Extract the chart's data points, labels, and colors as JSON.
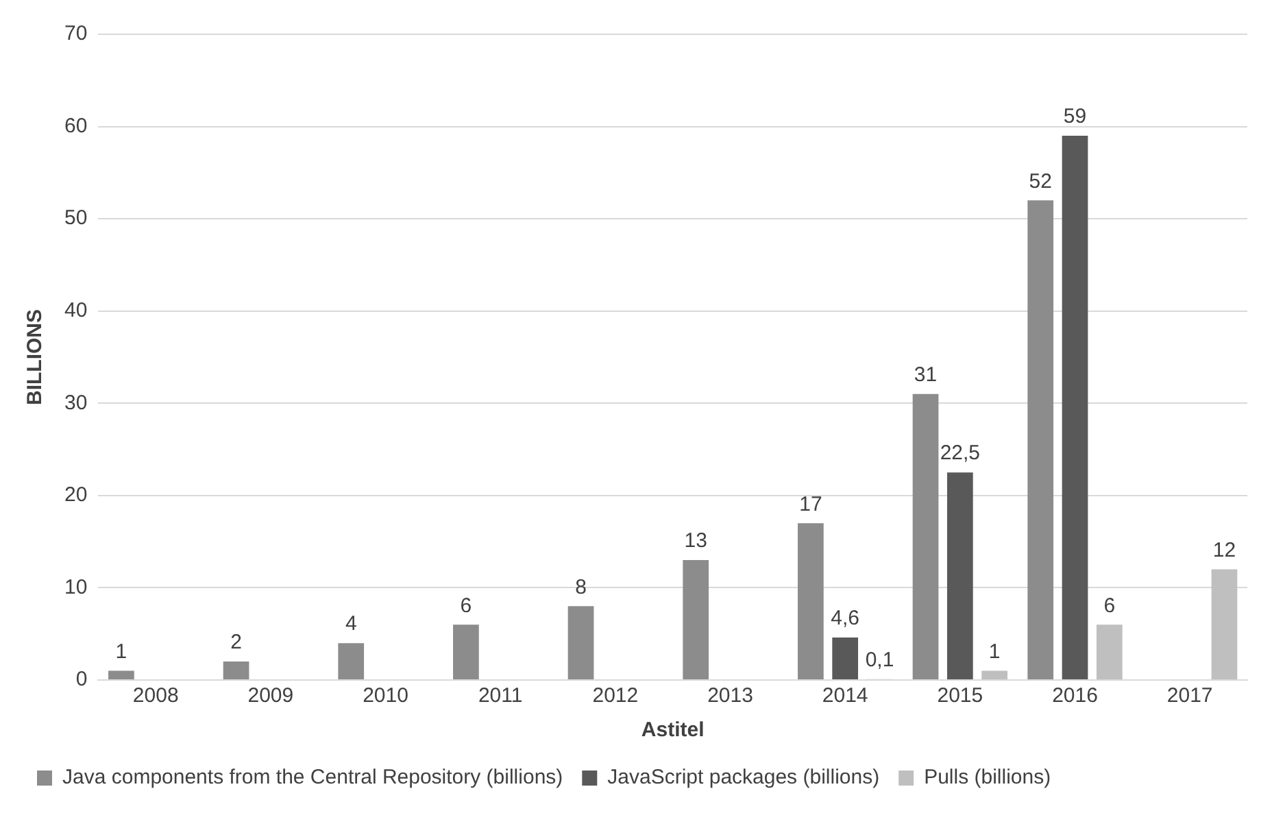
{
  "chart_data": {
    "type": "bar",
    "xlabel": "Astitel",
    "ylabel": "BILLIONS",
    "categories": [
      "2008",
      "2009",
      "2010",
      "2011",
      "2012",
      "2013",
      "2014",
      "2015",
      "2016",
      "2017"
    ],
    "series": [
      {
        "name": "Java components from the Central Repository (billions)",
        "color": "#8c8c8c",
        "values": [
          1,
          2,
          4,
          6,
          8,
          13,
          17,
          31,
          52,
          null
        ],
        "value_labels": [
          "1",
          "2",
          "4",
          "6",
          "8",
          "13",
          "17",
          "31",
          "52",
          null
        ]
      },
      {
        "name": "JavaScript packages (billions)",
        "color": "#595959",
        "values": [
          null,
          null,
          null,
          null,
          null,
          null,
          4.6,
          22.5,
          59,
          null
        ],
        "value_labels": [
          null,
          null,
          null,
          null,
          null,
          null,
          "4,6",
          "22,5",
          "59",
          null
        ]
      },
      {
        "name": "Pulls (billions)",
        "color": "#bfbfbf",
        "values": [
          null,
          null,
          null,
          null,
          null,
          null,
          0.1,
          1,
          6,
          12
        ],
        "value_labels": [
          null,
          null,
          null,
          null,
          null,
          null,
          "0,1",
          "1",
          "6",
          "12"
        ]
      }
    ],
    "ylim": [
      0,
      70
    ],
    "yticks": [
      0,
      10,
      20,
      30,
      40,
      50,
      60,
      70
    ],
    "grid": "y",
    "legend": "bottom"
  }
}
